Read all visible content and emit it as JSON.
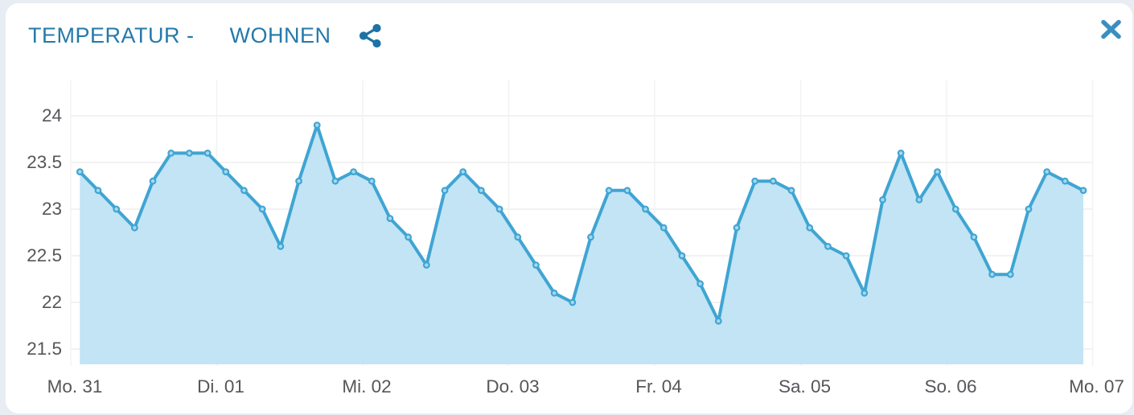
{
  "page": {
    "background": "#e8edf3"
  },
  "card": {
    "background": "#ffffff"
  },
  "header": {
    "title_metric": "TEMPERATUR -",
    "title_room": "WOHNEN",
    "title_color": "#2579a9",
    "share_color": "#1d72a6",
    "close_color": "#3a8fc0"
  },
  "chart_data": {
    "type": "area",
    "title": "TEMPERATUR - WOHNEN",
    "categories": [
      "Mo. 31",
      "Di. 01",
      "Mi. 02",
      "Do. 03",
      "Fr. 04",
      "Sa. 05",
      "So. 06",
      "Mo. 07"
    ],
    "points_per_category": 8,
    "y_ticks": [
      24,
      23.5,
      23,
      22.5,
      22,
      21.5
    ],
    "y_tick_labels": [
      "24",
      "23.5",
      "23",
      "22.5",
      "22",
      "21.5"
    ],
    "ylim": [
      21.3,
      24.4
    ],
    "grid": true,
    "legend": "none",
    "series": [
      {
        "name": "Temperatur Wohnen",
        "values": [
          23.4,
          23.2,
          23.0,
          22.8,
          23.3,
          23.6,
          23.6,
          23.6,
          23.4,
          23.2,
          23.0,
          22.6,
          23.3,
          23.9,
          23.3,
          23.4,
          23.3,
          22.9,
          22.7,
          22.4,
          23.2,
          23.4,
          23.2,
          23.0,
          22.7,
          22.4,
          22.1,
          22.0,
          22.7,
          23.2,
          23.2,
          23.0,
          22.8,
          22.5,
          22.2,
          21.8,
          22.8,
          23.3,
          23.3,
          23.2,
          22.8,
          22.6,
          22.5,
          22.1,
          23.1,
          23.6,
          23.1,
          23.4,
          23.0,
          22.7,
          22.3,
          22.3,
          23.0,
          23.4,
          23.3,
          23.2
        ]
      }
    ],
    "line_color": "#3fa5d3",
    "fill_color": "#c2e4f4",
    "marker_fill": "#a8d8ee",
    "axis_label_color": "#55565a",
    "grid_color": "#ededed"
  }
}
